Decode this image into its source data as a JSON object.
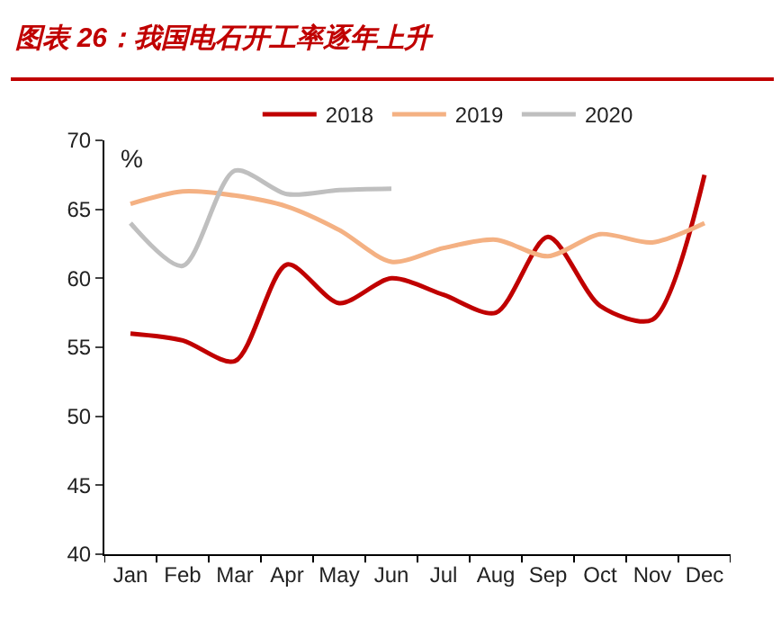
{
  "chart_data": {
    "type": "line",
    "title": "图表 26：我国电石开工率逐年上升",
    "ylabel": "%",
    "categories": [
      "Jan",
      "Feb",
      "Mar",
      "Apr",
      "May",
      "Jun",
      "Jul",
      "Aug",
      "Sep",
      "Oct",
      "Nov",
      "Dec"
    ],
    "series": [
      {
        "name": "2018",
        "color": "#c00000",
        "values": [
          56,
          55.5,
          54,
          61,
          58.2,
          60,
          58.8,
          57.5,
          63,
          58,
          57,
          67.5
        ]
      },
      {
        "name": "2019",
        "color": "#f4b183",
        "values": [
          65.4,
          66.3,
          66,
          65.2,
          63.5,
          61.2,
          62.2,
          62.8,
          61.6,
          63.2,
          62.6,
          64
        ]
      },
      {
        "name": "2020",
        "color": "#bfbfbf",
        "values": [
          64,
          60.9,
          67.8,
          66.1,
          66.4,
          66.5,
          null,
          null,
          null,
          null,
          null,
          null
        ]
      }
    ],
    "ylim": [
      40,
      70
    ],
    "yticks": [
      40,
      45,
      50,
      55,
      60,
      65,
      70
    ],
    "grid": false,
    "legend": "top",
    "marker": "none",
    "line_style": "solid"
  }
}
